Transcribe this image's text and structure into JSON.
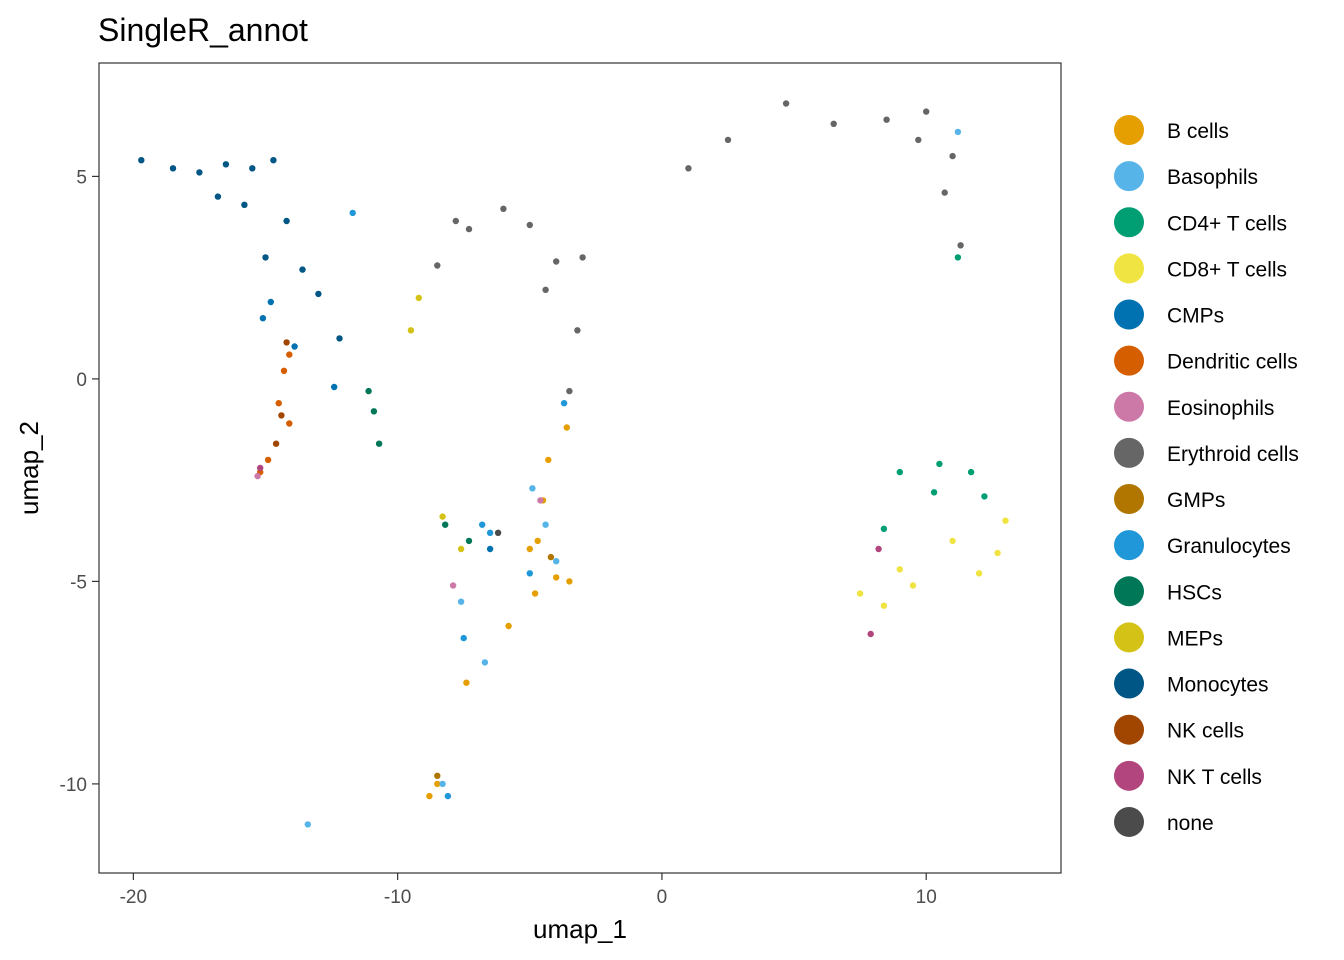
{
  "chart_data": {
    "type": "scatter",
    "title": "SingleR_annot",
    "xlabel": "umap_1",
    "ylabel": "umap_2",
    "xlim": [
      -21.3,
      15.1
    ],
    "ylim": [
      -12.2,
      7.8
    ],
    "x_ticks": [
      -20,
      -10,
      0,
      10
    ],
    "x_tick_labels": [
      "-20",
      "-10",
      "0",
      "10"
    ],
    "y_ticks": [
      5,
      0,
      -5,
      -10
    ],
    "y_tick_labels": [
      "5",
      "0",
      "-5",
      "-10"
    ],
    "grid": false,
    "legend_position": "right",
    "series": [
      {
        "name": "B cells",
        "color": "#E69F00",
        "points": [
          [
            -4.3,
            -2
          ],
          [
            -4.5,
            -3
          ],
          [
            -4.7,
            -4
          ],
          [
            -4,
            -4.9
          ],
          [
            -3.5,
            -5
          ],
          [
            -4.8,
            -5.3
          ],
          [
            -3.6,
            -1.2
          ],
          [
            -5,
            -4.2
          ],
          [
            -8.5,
            -10
          ],
          [
            -8.8,
            -10.3
          ],
          [
            -7.4,
            -7.5
          ],
          [
            -5.8,
            -6.1
          ]
        ]
      },
      {
        "name": "Basophils",
        "color": "#56B4E9",
        "points": [
          [
            -4.9,
            -2.7
          ],
          [
            -4.4,
            -3.6
          ],
          [
            -4,
            -4.5
          ],
          [
            -7.6,
            -5.5
          ],
          [
            -8.3,
            -10
          ],
          [
            -6.7,
            -7
          ],
          [
            11.2,
            6.1
          ],
          [
            -13.4,
            -11
          ]
        ]
      },
      {
        "name": "CD4+ T cells",
        "color": "#009E73",
        "points": [
          [
            9,
            -2.3
          ],
          [
            10.5,
            -2.1
          ],
          [
            11.7,
            -2.3
          ],
          [
            12.2,
            -2.9
          ],
          [
            8.4,
            -3.7
          ],
          [
            10.3,
            -2.8
          ],
          [
            11.2,
            3
          ]
        ]
      },
      {
        "name": "CD8+ T cells",
        "color": "#F0E442",
        "points": [
          [
            7.5,
            -5.3
          ],
          [
            8.4,
            -5.6
          ],
          [
            9,
            -4.7
          ],
          [
            11,
            -4
          ],
          [
            12,
            -4.8
          ],
          [
            12.7,
            -4.3
          ],
          [
            9.5,
            -5.1
          ],
          [
            13,
            -3.5
          ]
        ]
      },
      {
        "name": "CMPs",
        "color": "#0072B2",
        "points": [
          [
            -14.8,
            1.9
          ],
          [
            -15.1,
            1.5
          ],
          [
            -13.9,
            0.8
          ],
          [
            -12.4,
            -0.2
          ],
          [
            -6.5,
            -4.2
          ]
        ]
      },
      {
        "name": "Dendritic cells",
        "color": "#D55E00",
        "points": [
          [
            -14.3,
            0.2
          ],
          [
            -14.5,
            -0.6
          ],
          [
            -14.1,
            -1.1
          ],
          [
            -14.9,
            -2
          ],
          [
            -15.2,
            -2.3
          ],
          [
            -14.1,
            0.6
          ]
        ]
      },
      {
        "name": "Eosinophils",
        "color": "#CC79A7",
        "points": [
          [
            -15.3,
            -2.4
          ],
          [
            -7.9,
            -5.1
          ],
          [
            -4.6,
            -3
          ]
        ]
      },
      {
        "name": "Erythroid cells",
        "color": "#666666",
        "points": [
          [
            1,
            5.2
          ],
          [
            2.5,
            5.9
          ],
          [
            4.7,
            6.8
          ],
          [
            6.5,
            6.3
          ],
          [
            8.5,
            6.4
          ],
          [
            10,
            6.6
          ],
          [
            11,
            5.5
          ],
          [
            10.7,
            4.6
          ],
          [
            11.3,
            3.3
          ],
          [
            -8.5,
            2.8
          ],
          [
            -7.3,
            3.7
          ],
          [
            -6,
            4.2
          ],
          [
            -5,
            3.8
          ],
          [
            -4,
            2.9
          ],
          [
            -3,
            3
          ],
          [
            -3.2,
            1.2
          ],
          [
            -3.5,
            -0.3
          ],
          [
            -7.8,
            3.9
          ],
          [
            -4.4,
            2.2
          ],
          [
            9.7,
            5.9
          ]
        ]
      },
      {
        "name": "GMPs",
        "color": "#B07600",
        "points": [
          [
            -8.5,
            -9.8
          ],
          [
            -4.2,
            -4.4
          ]
        ]
      },
      {
        "name": "Granulocytes",
        "color": "#1F97D8",
        "points": [
          [
            -5,
            -4.8
          ],
          [
            -6.5,
            -3.8
          ],
          [
            -7.5,
            -6.4
          ],
          [
            -6.8,
            -3.6
          ],
          [
            -3.7,
            -0.6
          ],
          [
            -8.1,
            -10.3
          ],
          [
            -11.7,
            4.1
          ]
        ]
      },
      {
        "name": "HSCs",
        "color": "#007858",
        "points": [
          [
            -10.9,
            -0.8
          ],
          [
            -11.1,
            -0.3
          ],
          [
            -10.7,
            -1.6
          ],
          [
            -8.2,
            -3.6
          ],
          [
            -7.3,
            -4
          ]
        ]
      },
      {
        "name": "MEPs",
        "color": "#D4C316",
        "points": [
          [
            -9.2,
            2
          ],
          [
            -9.5,
            1.2
          ],
          [
            -8.3,
            -3.4
          ],
          [
            -7.6,
            -4.2
          ]
        ]
      },
      {
        "name": "Monocytes",
        "color": "#005685",
        "points": [
          [
            -19.7,
            5.4
          ],
          [
            -18.5,
            5.2
          ],
          [
            -17.5,
            5.1
          ],
          [
            -16.5,
            5.3
          ],
          [
            -15.5,
            5.2
          ],
          [
            -14.7,
            5.4
          ],
          [
            -16.8,
            4.5
          ],
          [
            -14.2,
            3.9
          ],
          [
            -15,
            3
          ],
          [
            -13.6,
            2.7
          ],
          [
            -13,
            2.1
          ],
          [
            -12.2,
            1
          ],
          [
            -15.8,
            4.3
          ]
        ]
      },
      {
        "name": "NK cells",
        "color": "#A04600",
        "points": [
          [
            -14.4,
            -0.9
          ],
          [
            -14.6,
            -1.6
          ],
          [
            -14.2,
            0.9
          ]
        ]
      },
      {
        "name": "NK T cells",
        "color": "#B2457D",
        "points": [
          [
            -15.2,
            -2.2
          ],
          [
            8.2,
            -4.2
          ],
          [
            7.9,
            -6.3
          ]
        ]
      },
      {
        "name": "none",
        "color": "#4B4B4B",
        "points": [
          [
            -6.2,
            -3.8
          ]
        ]
      }
    ]
  }
}
